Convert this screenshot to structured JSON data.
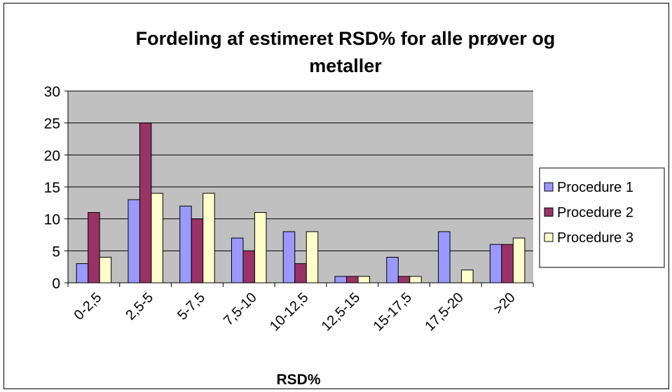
{
  "chart_data": {
    "type": "bar",
    "title_line1": "Fordeling af estimeret RSD% for alle prøver og",
    "title_line2": "metaller",
    "xlabel": "RSD%",
    "ylabel": "",
    "ylim": [
      0,
      30
    ],
    "yticks": [
      0,
      5,
      10,
      15,
      20,
      25,
      30
    ],
    "grid": true,
    "legend_position": "right",
    "categories": [
      "0-2,5",
      "2,5-5",
      "5-7,5",
      "7,5-10",
      "10-12,5",
      "12,5-15",
      "15-17,5",
      "17,5-20",
      ">20"
    ],
    "series": [
      {
        "name": "Procedure 1",
        "color": "#9999ff",
        "values": [
          3,
          13,
          12,
          7,
          8,
          1,
          4,
          8,
          6
        ]
      },
      {
        "name": "Procedure 2",
        "color": "#993366",
        "values": [
          11,
          25,
          10,
          5,
          3,
          1,
          1,
          0,
          6
        ]
      },
      {
        "name": "Procedure 3",
        "color": "#ffffcc",
        "values": [
          4,
          14,
          14,
          11,
          8,
          1,
          1,
          2,
          7
        ]
      }
    ],
    "plot_background": "#c0c0c0"
  }
}
